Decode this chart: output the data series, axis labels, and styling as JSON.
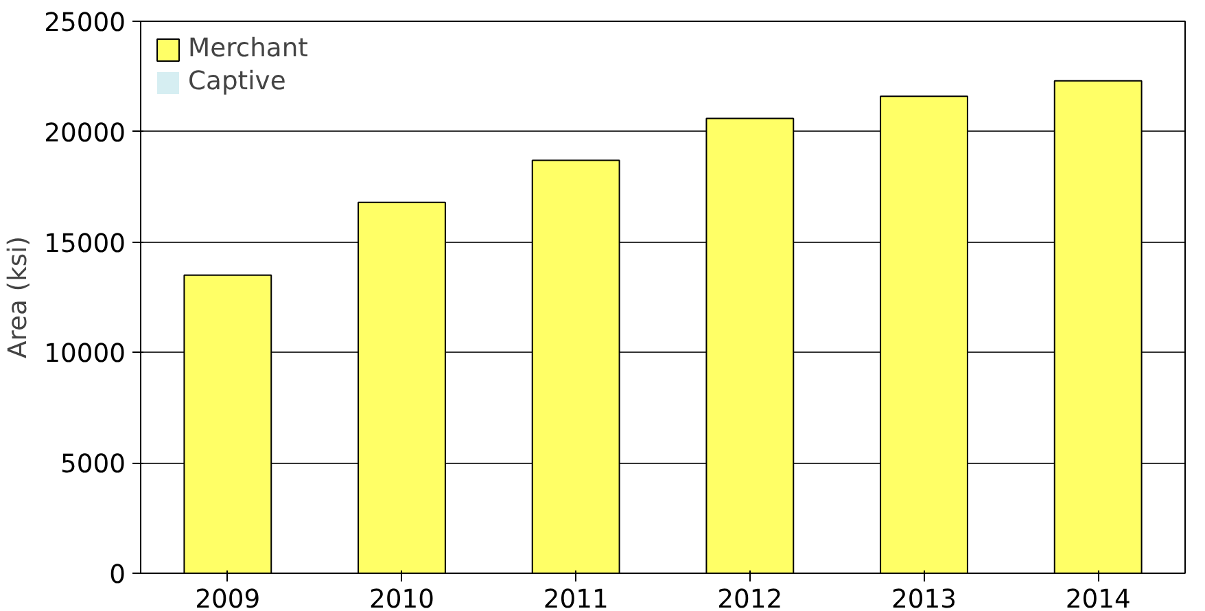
{
  "chart_data": {
    "type": "bar",
    "ylabel": "Area (ksi)",
    "categories": [
      "2009",
      "2010",
      "2011",
      "2012",
      "2013",
      "2014"
    ],
    "stacked": true,
    "series": [
      {
        "name": "Merchant",
        "color": "#ffff66",
        "values": [
          13500,
          16800,
          18700,
          20600,
          21600,
          22300
        ]
      },
      {
        "name": "Captive",
        "color": "#d6eef2",
        "values": [
          0,
          0,
          0,
          0,
          0,
          0
        ]
      }
    ],
    "ylim": [
      0,
      25000
    ],
    "yticks": [
      0,
      5000,
      10000,
      15000,
      20000,
      25000
    ],
    "grid": "y",
    "legend": "top left"
  }
}
